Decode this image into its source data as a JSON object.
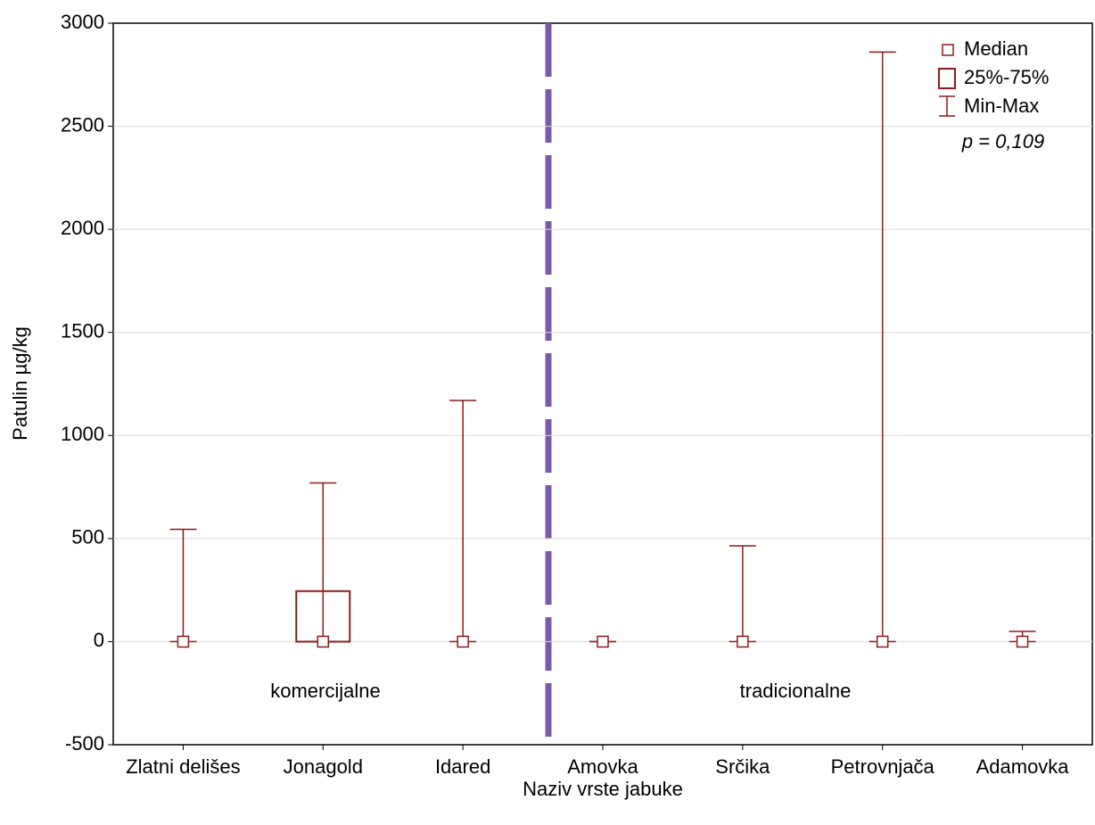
{
  "chart_data": {
    "type": "box",
    "xlabel": "Naziv vrste jabuke",
    "ylabel": "Patulin µg/kg",
    "categories": [
      "Zlatni delišes",
      "Jonagold",
      "Idared",
      "Amovka",
      "Srčika",
      "Petrovnjača",
      "Adamovka"
    ],
    "series": [
      {
        "name": "Median",
        "values": [
          0,
          0,
          0,
          0,
          0,
          0,
          0
        ]
      },
      {
        "name": "25%-75%",
        "q1": [
          0,
          0,
          0,
          0,
          0,
          0,
          0
        ],
        "q3": [
          0,
          245,
          0,
          0,
          0,
          0,
          0
        ]
      },
      {
        "name": "Min-Max",
        "min": [
          0,
          0,
          0,
          0,
          0,
          0,
          0
        ],
        "max": [
          545,
          770,
          1170,
          0,
          465,
          2860,
          50
        ]
      }
    ],
    "color": "#8b1c1c",
    "annotations": [
      "komercijalne",
      "tradicionalne",
      "p = 0,109"
    ],
    "ylim": [
      -500,
      3000
    ],
    "yticks": [
      -500,
      0,
      500,
      1000,
      1500,
      2000,
      2500,
      3000
    ],
    "grid": true
  }
}
